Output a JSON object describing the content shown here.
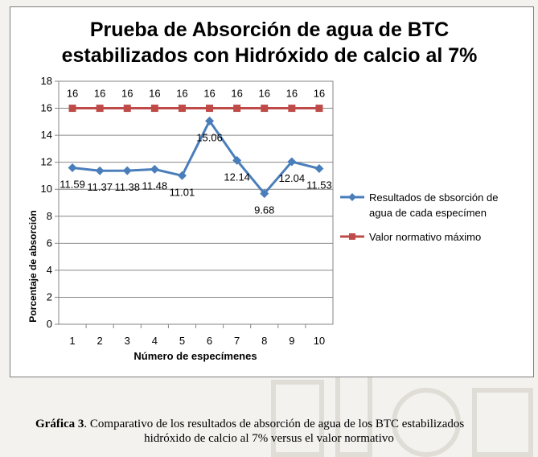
{
  "chart_data": {
    "type": "line",
    "title_line1": "Prueba de Absorción de agua de BTC",
    "title_line2": "estabilizados con Hidróxido de calcio al 7%",
    "xlabel": "Número de especímenes",
    "ylabel": "Porcentaje de absorción",
    "ylim": [
      0,
      18
    ],
    "yticks": [
      "0",
      "2",
      "4",
      "6",
      "8",
      "10",
      "12",
      "14",
      "16",
      "18"
    ],
    "categories": [
      "1",
      "2",
      "3",
      "4",
      "5",
      "6",
      "7",
      "8",
      "9",
      "10"
    ],
    "grid": "horizontal",
    "legend_position": "right",
    "series": [
      {
        "name": "Resultados de sbsorción de agua de cada especímen",
        "name_line1": "Resultados de sbsorción de",
        "name_line2": "agua de cada especímen",
        "values": [
          11.59,
          11.37,
          11.38,
          11.48,
          11.01,
          15.06,
          12.14,
          9.68,
          12.04,
          11.53
        ],
        "labels": [
          "11.59",
          "11.37",
          "11.38",
          "11.48",
          "11.01",
          "15.06",
          "12.14",
          "9.68",
          "12.04",
          "11.53"
        ],
        "color": "#4a7ebb",
        "marker": "diamond"
      },
      {
        "name": "Valor normativo máximo",
        "values": [
          16,
          16,
          16,
          16,
          16,
          16,
          16,
          16,
          16,
          16
        ],
        "labels": [
          "16",
          "16",
          "16",
          "16",
          "16",
          "16",
          "16",
          "16",
          "16",
          "16"
        ],
        "color": "#be4b48",
        "marker": "square"
      }
    ]
  },
  "caption": {
    "prefix": "Gráfica 3",
    "line1": ". Comparativo de los resultados de absorción de agua  de los BTC estabilizados",
    "line2": "hidróxido de calcio al 7% versus el valor normativo"
  }
}
